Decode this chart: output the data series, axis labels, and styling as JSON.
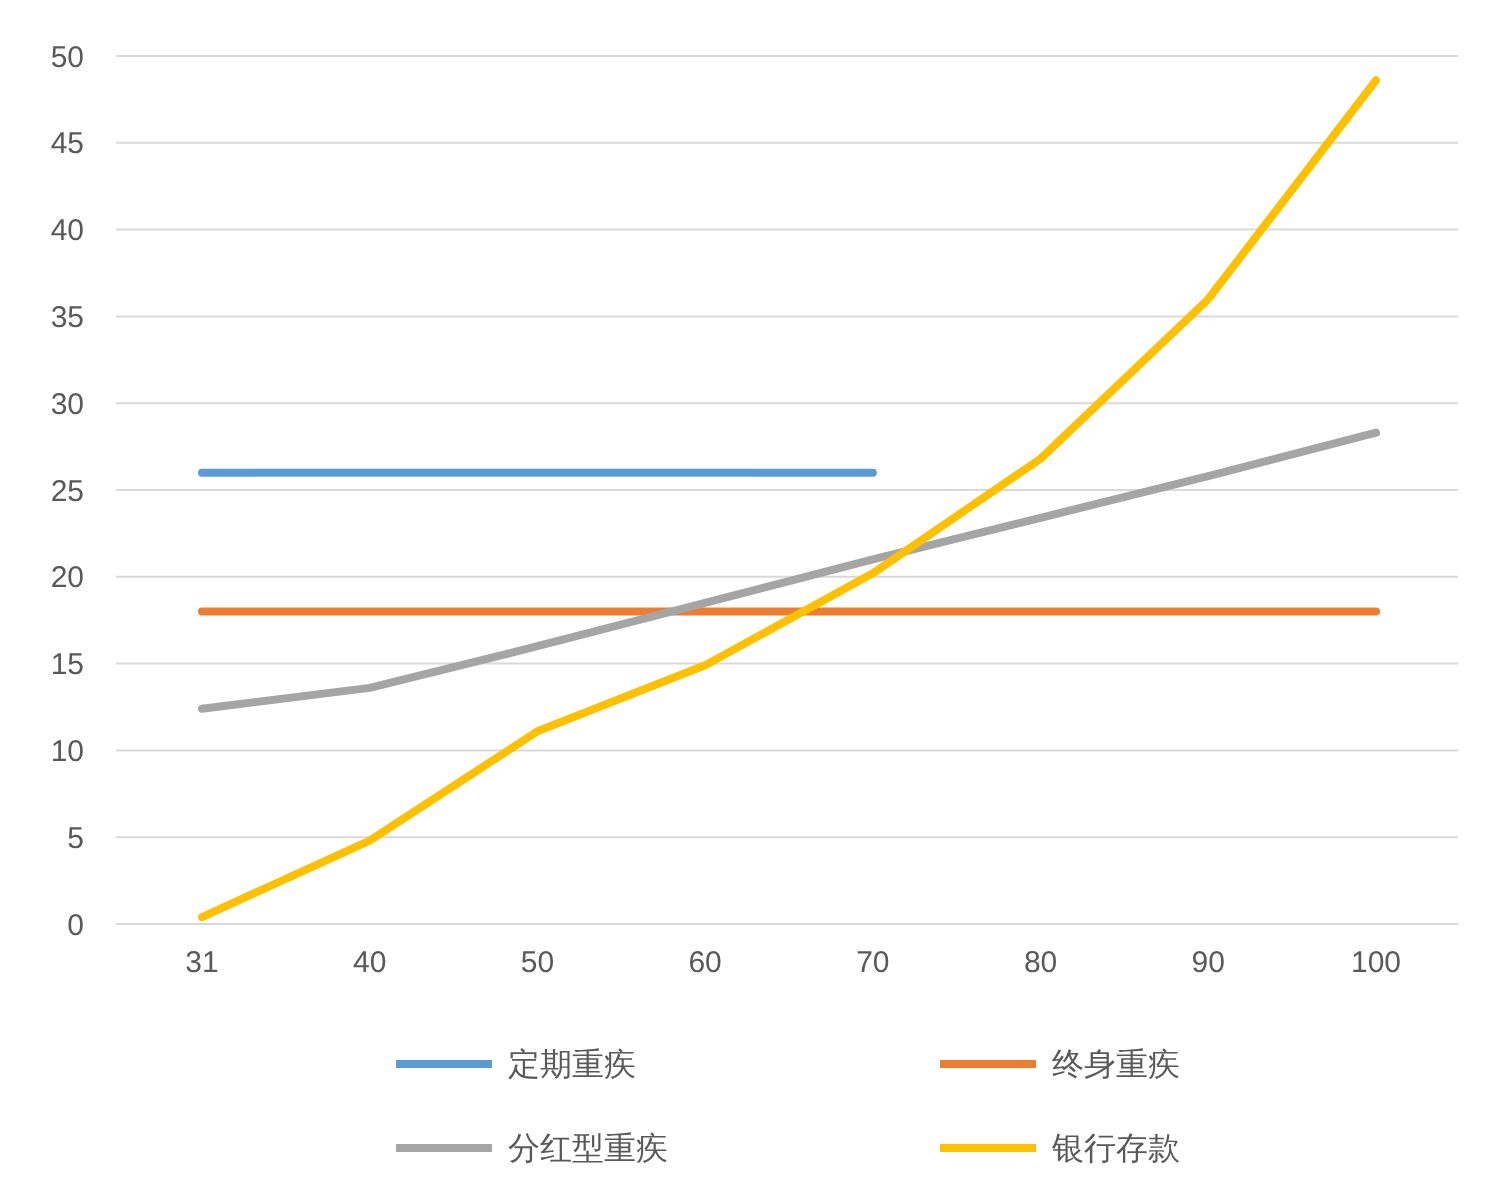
{
  "chart_data": {
    "type": "line",
    "categories": [
      "31",
      "40",
      "50",
      "60",
      "70",
      "80",
      "90",
      "100"
    ],
    "series": [
      {
        "name": "定期重疾",
        "color": "#5b9bd5",
        "values": [
          26,
          26,
          26,
          26,
          26,
          null,
          null,
          null
        ]
      },
      {
        "name": "终身重疾",
        "color": "#ed7d31",
        "values": [
          18,
          18,
          18,
          18,
          18,
          18,
          18,
          18
        ]
      },
      {
        "name": "分红型重疾",
        "color": "#a5a5a5",
        "values": [
          12.4,
          13.6,
          16,
          18.5,
          21,
          23.4,
          25.8,
          28.3
        ]
      },
      {
        "name": "银行存款",
        "color": "#ffc000",
        "values": [
          0.4,
          4.8,
          11.1,
          14.9,
          20.2,
          26.8,
          36,
          48.6
        ]
      }
    ],
    "ylim": [
      0,
      50
    ],
    "yticks": [
      0,
      5,
      10,
      15,
      20,
      25,
      30,
      35,
      40,
      45,
      50
    ],
    "grid": "y",
    "legend": "bottom",
    "line_style": "solid"
  }
}
